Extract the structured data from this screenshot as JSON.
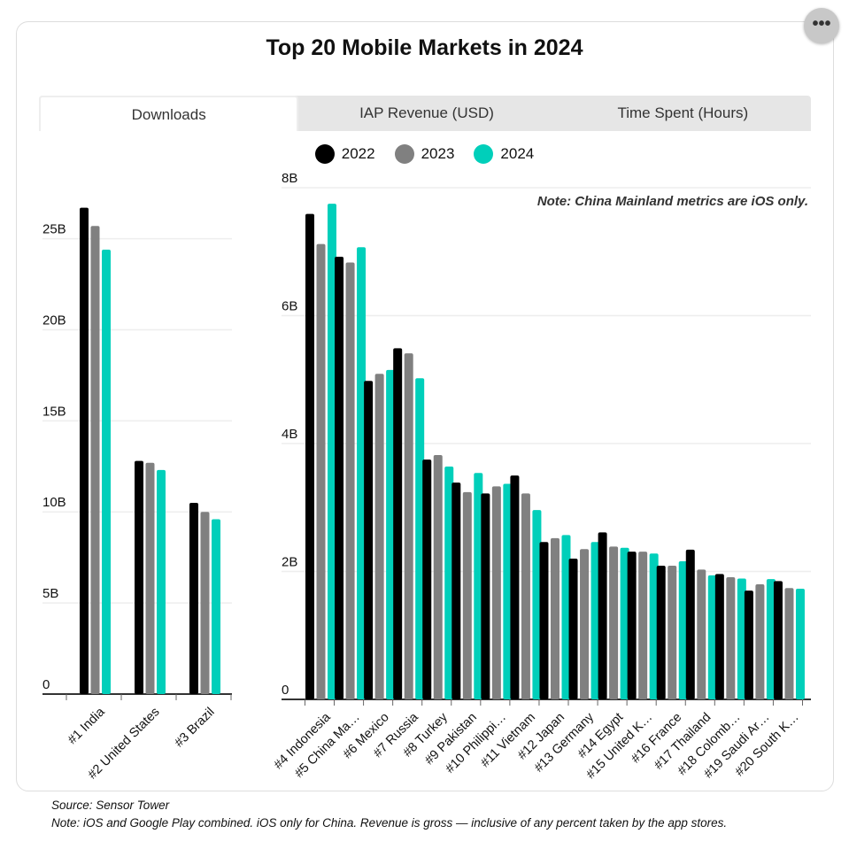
{
  "title": "Top 20 Mobile Markets in 2024",
  "more_label": "•••",
  "tabs": [
    {
      "label": "Downloads",
      "active": true
    },
    {
      "label": "IAP Revenue (USD)",
      "active": false
    },
    {
      "label": "Time Spent (Hours)",
      "active": false
    }
  ],
  "note": "Note: China Mainland metrics are iOS only.",
  "footer": {
    "source": "Source: Sensor Tower",
    "note": "Note: iOS and Google Play combined. iOS only for China. Revenue is gross — inclusive of any percent taken by the app stores."
  },
  "colors": {
    "2022": "#000000",
    "2023": "#808080",
    "2024": "#00cfba"
  },
  "chart_data": [
    {
      "type": "bar",
      "ylim": [
        0,
        27
      ],
      "yticks": [
        0,
        5,
        10,
        15,
        20,
        25
      ],
      "ytick_labels": [
        "0",
        "5B",
        "10B",
        "15B",
        "20B",
        "25B"
      ],
      "grid": true,
      "categories": [
        "#1 India",
        "#2 United States",
        "#3 Brazil"
      ],
      "series": [
        {
          "name": "2022",
          "values": [
            26.7,
            12.8,
            10.5
          ]
        },
        {
          "name": "2023",
          "values": [
            25.7,
            12.7,
            10.0
          ]
        },
        {
          "name": "2024",
          "values": [
            24.4,
            12.3,
            9.6
          ]
        }
      ],
      "legend": "top-center"
    },
    {
      "type": "bar",
      "ylim": [
        0,
        8
      ],
      "yticks": [
        0,
        2,
        4,
        6,
        8
      ],
      "ytick_labels": [
        "0",
        "2B",
        "4B",
        "6B",
        "8B"
      ],
      "grid": true,
      "categories": [
        "#4 Indonesia",
        "#5 China Ma…",
        "#6 Mexico",
        "#7 Russia",
        "#8 Turkey",
        "#9 Pakistan",
        "#10 Philippi…",
        "#11 Vietnam",
        "#12 Japan",
        "#13 Germany",
        "#14 Egypt",
        "#15 United K…",
        "#16 France",
        "#17 Thailand",
        "#18 Colomb…",
        "#19 Saudi Ar…",
        "#20 South K…"
      ],
      "series": [
        {
          "name": "2022",
          "values": [
            7.59,
            6.92,
            4.98,
            5.49,
            3.75,
            3.39,
            3.22,
            3.5,
            2.46,
            2.2,
            2.61,
            2.31,
            2.09,
            2.34,
            1.96,
            1.7,
            1.85
          ]
        },
        {
          "name": "2023",
          "values": [
            7.12,
            6.83,
            5.09,
            5.41,
            3.82,
            3.24,
            3.33,
            3.22,
            2.52,
            2.35,
            2.39,
            2.31,
            2.09,
            2.03,
            1.91,
            1.8,
            1.74
          ]
        },
        {
          "name": "2024",
          "values": [
            7.75,
            7.07,
            5.15,
            5.02,
            3.64,
            3.54,
            3.37,
            2.96,
            2.57,
            2.46,
            2.37,
            2.28,
            2.16,
            1.94,
            1.89,
            1.88,
            1.73
          ]
        }
      ]
    }
  ]
}
